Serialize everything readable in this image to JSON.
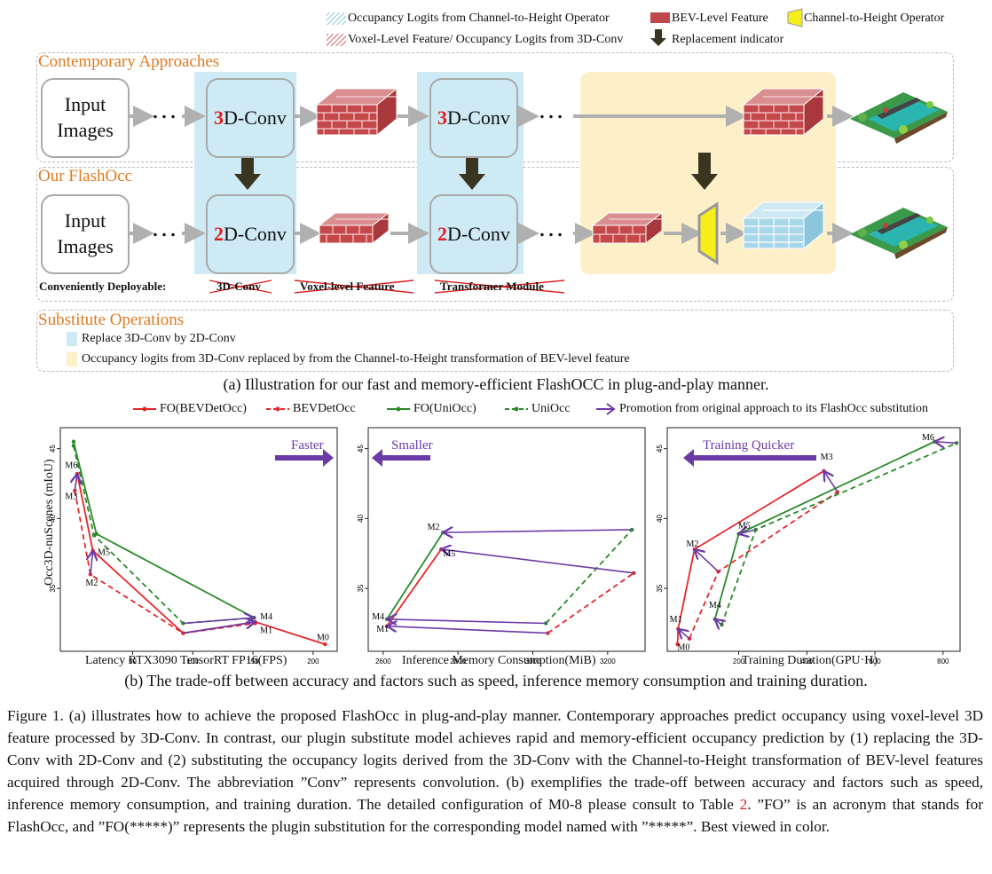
{
  "legend_top": {
    "occ_c2h": "Occupancy Logits from Channel-to-Height Operator",
    "bev_feature": "BEV-Level Feature",
    "c2h_operator": "Channel-to-Height Operator",
    "voxel_feature": "Voxel-Level Feature/ Occupancy Logits from 3D-Conv",
    "replacement": "Replacement indicator"
  },
  "contemporary": {
    "title": "Contemporary Approaches",
    "input": "Input\nImages",
    "conv1_num": "3",
    "conv1_rest": "D-Conv",
    "conv2_num": "3",
    "conv2_rest": "D-Conv",
    "dots": "…"
  },
  "flashocc": {
    "title": "Our FlashOcc",
    "input": "Input\nImages",
    "conv1_num": "2",
    "conv1_rest": "D-Conv",
    "conv2_num": "2",
    "conv2_rest": "D-Conv",
    "dots": "…",
    "deployable_label": "Conveniently Deployable:",
    "crossed": [
      "3D-Conv",
      "Voxel-level Feature",
      "Transformer Module"
    ]
  },
  "substitute": {
    "title": "Substitute Operations",
    "item1": "Replace 3D-Conv by 2D-Conv",
    "item2": "Occupancy logits from 3D-Conv replaced by from the Channel-to-Height transformation of BEV-level feature"
  },
  "caption_a": "(a) Illustration for our fast and memory-efficient FlashOCC in plug-and-play manner.",
  "chart_legend": {
    "fo_bevdet": "FO(BEVDetOcc)",
    "bevdet": "BEVDetOcc",
    "fo_uniocc": "FO(UniOcc)",
    "uniocc": "UniOcc",
    "promotion": "Promotion from original approach to its FlashOcc substitution"
  },
  "colors": {
    "red": "#e8262a",
    "green": "#2a8a2a",
    "purple": "#6b3aa6",
    "orange": "#e07a1f",
    "blue": "#cdeaf5",
    "yellow": "#fdefc8"
  },
  "chart_data": [
    {
      "type": "line",
      "title": "",
      "banner": "Faster",
      "xlabel": "Latency RTX3090 TensorRT FP16(FPS)",
      "ylabel": "Occ3D-nuScenes (mIoU)",
      "xlim": [
        -10,
        220
      ],
      "ylim": [
        30.5,
        46.5
      ],
      "xticks": [
        50,
        100,
        150,
        200
      ],
      "yticks": [
        35,
        40,
        45
      ],
      "series": [
        {
          "name": "FO(BEVDetOcc)",
          "style": "solid",
          "color": "red",
          "x": [
            4,
            17,
            92,
            152,
            210
          ],
          "y": [
            43.2,
            37.7,
            31.8,
            32.6,
            31.0
          ]
        },
        {
          "name": "BEVDetOcc",
          "style": "dashed",
          "color": "red",
          "x": [
            2,
            15,
            92,
            152
          ],
          "y": [
            42.0,
            36.0,
            31.8,
            32.5
          ]
        },
        {
          "name": "FO(UniOcc)",
          "style": "solid",
          "color": "green",
          "x": [
            1,
            20,
            151
          ],
          "y": [
            45.5,
            38.9,
            32.9
          ]
        },
        {
          "name": "UniOcc",
          "style": "dashed",
          "color": "green",
          "x": [
            1,
            18,
            92,
            151
          ],
          "y": [
            45.2,
            38.8,
            32.5,
            32.9
          ]
        }
      ],
      "arrows": [
        [
          2,
          42.0,
          4,
          43.2
        ],
        [
          15,
          36.0,
          17,
          37.7
        ],
        [
          92,
          31.8,
          152,
          32.6
        ],
        [
          92,
          32.5,
          151,
          32.9
        ]
      ],
      "annotations": [
        {
          "text": "M6",
          "x": -6,
          "y": 43.6
        },
        {
          "text": "M3",
          "x": -6,
          "y": 41.4
        },
        {
          "text": "M5",
          "x": 21,
          "y": 37.4
        },
        {
          "text": "M2",
          "x": 11,
          "y": 35.2
        },
        {
          "text": "M4",
          "x": 156,
          "y": 32.8
        },
        {
          "text": "M1",
          "x": 156,
          "y": 31.8
        },
        {
          "text": "M0",
          "x": 203,
          "y": 31.3
        }
      ]
    },
    {
      "type": "line",
      "title": "",
      "banner": "Smaller",
      "xlabel": "Inference Memory Consumption(MiB)",
      "ylabel": "",
      "xlim": [
        2560,
        3300
      ],
      "ylim": [
        30.5,
        46.5
      ],
      "xticks": [
        2600,
        2800,
        3000,
        3200
      ],
      "yticks": [
        35,
        40,
        45
      ],
      "series": [
        {
          "name": "FO(BEVDetOcc)",
          "style": "solid",
          "color": "red",
          "x": [
            2610,
            2755
          ],
          "y": [
            32.3,
            37.8
          ]
        },
        {
          "name": "BEVDetOcc",
          "style": "dashed",
          "color": "red",
          "x": [
            3040,
            3270
          ],
          "y": [
            31.8,
            36.1
          ]
        },
        {
          "name": "FO(UniOcc)",
          "style": "solid",
          "color": "green",
          "x": [
            2610,
            2760
          ],
          "y": [
            32.8,
            39.0
          ]
        },
        {
          "name": "UniOcc",
          "style": "dashed",
          "color": "green",
          "x": [
            3035,
            3265
          ],
          "y": [
            32.5,
            39.2
          ]
        }
      ],
      "arrows": [
        [
          3040,
          31.8,
          2610,
          32.3
        ],
        [
          3270,
          36.1,
          2755,
          37.8
        ],
        [
          3035,
          32.5,
          2610,
          32.8
        ],
        [
          3265,
          39.2,
          2760,
          39.0
        ]
      ],
      "annotations": [
        {
          "text": "M2",
          "x": 2718,
          "y": 39.2
        },
        {
          "text": "M5",
          "x": 2760,
          "y": 37.3
        },
        {
          "text": "M4",
          "x": 2570,
          "y": 32.8
        },
        {
          "text": "M1",
          "x": 2582,
          "y": 31.9
        }
      ]
    },
    {
      "type": "line",
      "title": "",
      "banner": "Training Quicker",
      "xlabel": "Training Duration(GPU·H)",
      "ylabel": "",
      "xlim": [
        -10,
        850
      ],
      "ylim": [
        30.5,
        46.5
      ],
      "xticks": [
        200,
        400,
        600,
        800
      ],
      "yticks": [
        35,
        40,
        45
      ],
      "series": [
        {
          "name": "FO(BEVDetOcc)",
          "style": "solid",
          "color": "red",
          "x": [
            20,
            22,
            70,
            450
          ],
          "y": [
            31.0,
            32.1,
            37.8,
            43.4
          ]
        },
        {
          "name": "BEVDetOcc",
          "style": "dashed",
          "color": "red",
          "x": [
            55,
            140,
            490
          ],
          "y": [
            31.4,
            36.2,
            41.9
          ]
        },
        {
          "name": "FO(UniOcc)",
          "style": "solid",
          "color": "green",
          "x": [
            130,
            200,
            775
          ],
          "y": [
            32.8,
            38.9,
            45.5
          ]
        },
        {
          "name": "UniOcc",
          "style": "dashed",
          "color": "green",
          "x": [
            150,
            250,
            840
          ],
          "y": [
            32.4,
            39.2,
            45.4
          ]
        }
      ],
      "arrows": [
        [
          55,
          31.4,
          22,
          32.1
        ],
        [
          140,
          36.2,
          70,
          37.8
        ],
        [
          490,
          41.9,
          450,
          43.4
        ],
        [
          250,
          39.2,
          200,
          38.9
        ],
        [
          840,
          45.4,
          775,
          45.5
        ],
        [
          150,
          32.4,
          130,
          32.8
        ]
      ],
      "annotations": [
        {
          "text": "M3",
          "x": 440,
          "y": 44.2
        },
        {
          "text": "M5",
          "x": 198,
          "y": 39.3
        },
        {
          "text": "M2",
          "x": 46,
          "y": 38.0
        },
        {
          "text": "M4",
          "x": 112,
          "y": 33.6
        },
        {
          "text": "M1",
          "x": -3,
          "y": 32.6
        },
        {
          "text": "M0",
          "x": 20,
          "y": 30.6
        },
        {
          "text": "M6",
          "x": 738,
          "y": 45.6
        }
      ]
    }
  ],
  "caption_b": "(b) The trade-off between accuracy and factors such as speed, inference memory consumption and training duration.",
  "figure_caption": {
    "pre": "Figure 1.  (a) illustrates how to achieve the proposed FlashOcc in plug-and-play manner. Contemporary approaches predict occupancy using voxel-level 3D feature processed by 3D-Conv.  In contrast, our plugin substitute model achieves rapid and memory-efficient occupancy prediction by (1) replacing the 3D-Conv with 2D-Conv and (2) substituting the occupancy logits derived from the 3D-Conv with the Channel-to-Height transformation of BEV-level features acquired through 2D-Conv. The abbreviation ”Conv” represents convolution. (b) exemplifies the trade-off between accuracy and factors such as speed, inference memory consumption, and training duration. The detailed configuration of M0-8 please consult to Table ",
    "ref": "2",
    "post": ".  ”FO” is an acronym that stands for FlashOcc, and ”FO(*****)” represents the plugin substitution for the corresponding model named with ”*****”. Best viewed in color."
  }
}
